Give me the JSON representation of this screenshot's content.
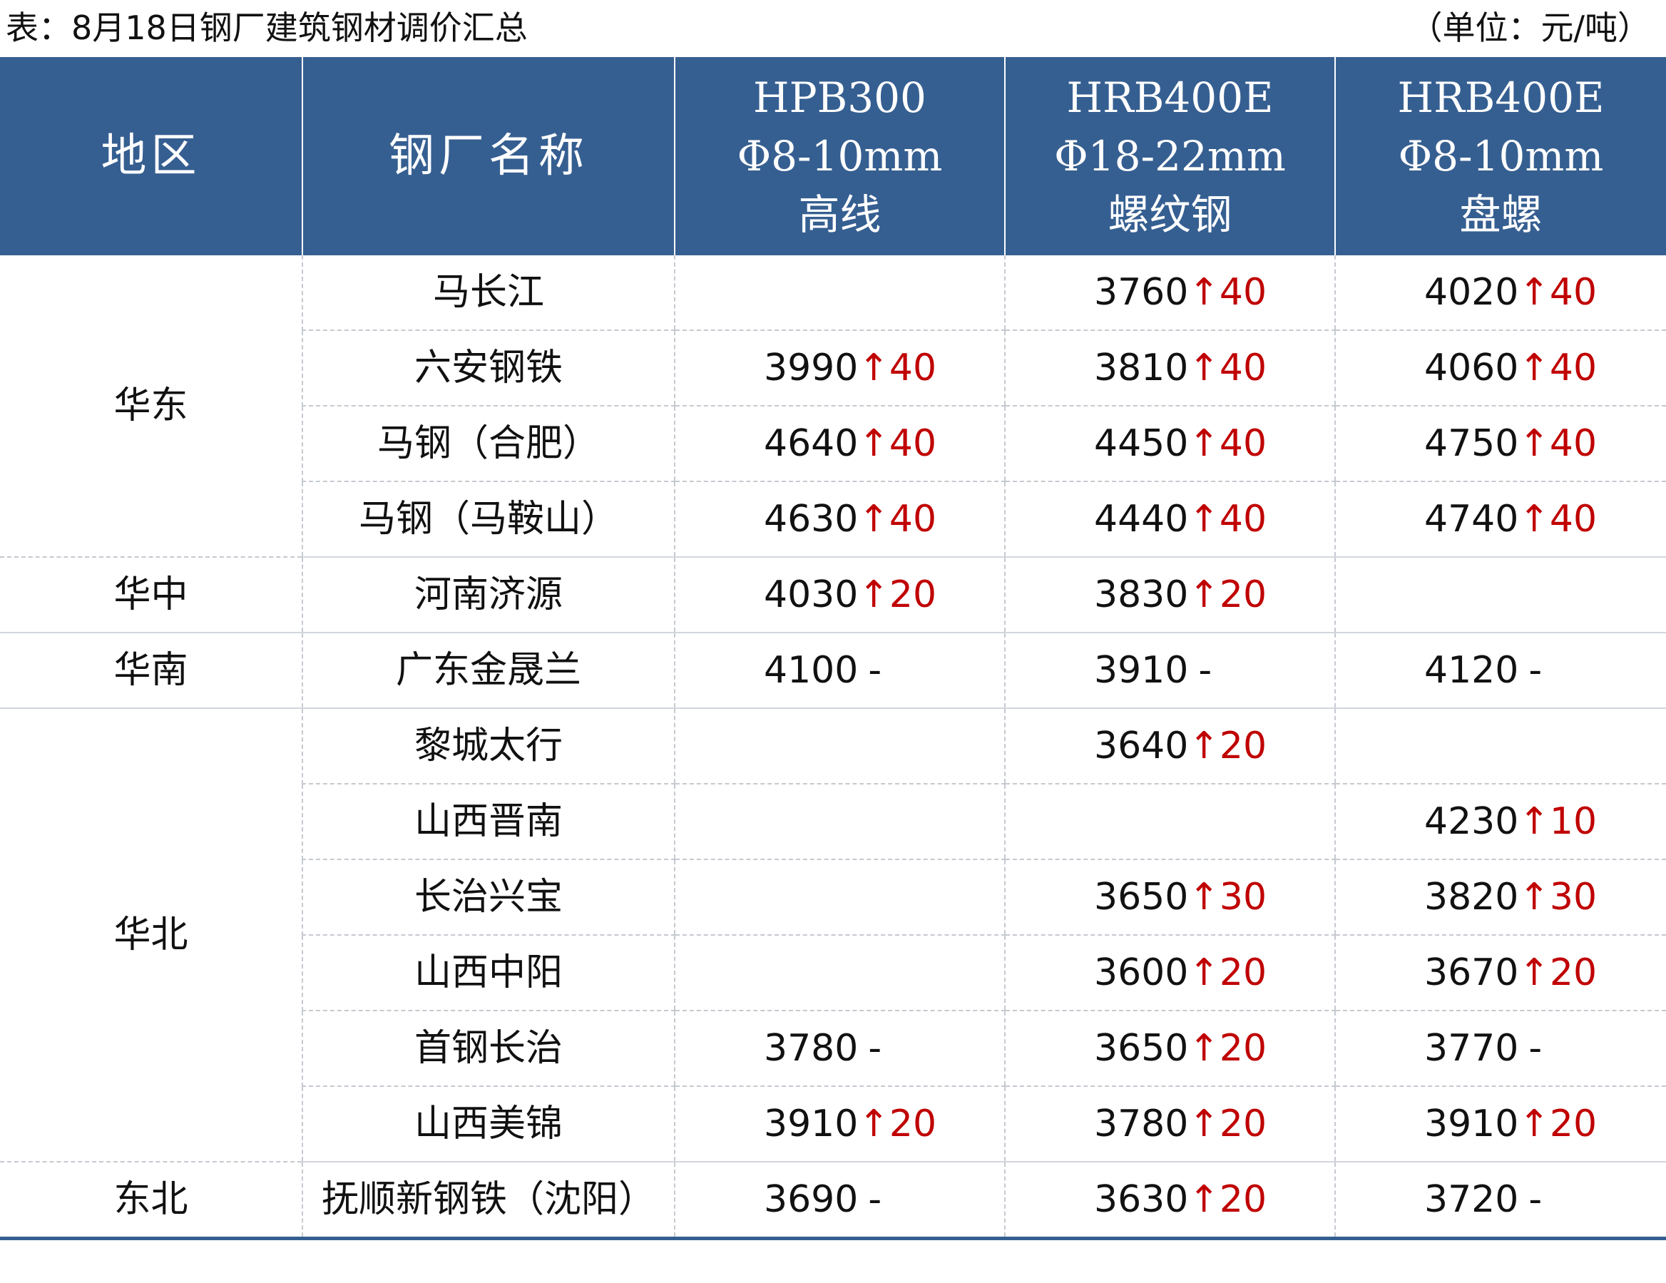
{
  "caption": {
    "title": "表：8月18日钢厂建筑钢材调价汇总",
    "unit": "（单位：元/吨）"
  },
  "headers": {
    "region": "地区",
    "mill": "钢厂名称",
    "col1": [
      "HPB300",
      "Φ8-10mm",
      "高线"
    ],
    "col2": [
      "HRB400E",
      "Φ18-22mm",
      "螺纹钢"
    ],
    "col3": [
      "HRB400E",
      "Φ8-10mm",
      "盘螺"
    ]
  },
  "rows": [
    {
      "region": "华东",
      "rowspan": 4,
      "mill": "马长江",
      "cells": [
        null,
        {
          "price": "3760",
          "change": "↑40"
        },
        {
          "price": "4020",
          "change": "↑40"
        }
      ]
    },
    {
      "mill": "六安钢铁",
      "cells": [
        {
          "price": "3990",
          "change": "↑40"
        },
        {
          "price": "3810",
          "change": "↑40"
        },
        {
          "price": "4060",
          "change": "↑40"
        }
      ]
    },
    {
      "mill": "马钢（合肥）",
      "cells": [
        {
          "price": "4640",
          "change": "↑40"
        },
        {
          "price": "4450",
          "change": "↑40"
        },
        {
          "price": "4750",
          "change": "↑40"
        }
      ]
    },
    {
      "mill": "马钢（马鞍山）",
      "cells": [
        {
          "price": "4630",
          "change": "↑40"
        },
        {
          "price": "4440",
          "change": "↑40"
        },
        {
          "price": "4740",
          "change": "↑40"
        }
      ]
    },
    {
      "region": "华中",
      "rowspan": 1,
      "mill": "河南济源",
      "cells": [
        {
          "price": "4030",
          "change": "↑20"
        },
        {
          "price": "3830",
          "change": "↑20"
        },
        null
      ]
    },
    {
      "region": "华南",
      "rowspan": 1,
      "mill": "广东金晟兰",
      "cells": [
        {
          "price": "4100",
          "change": "-"
        },
        {
          "price": "3910",
          "change": "-"
        },
        {
          "price": "4120",
          "change": "-"
        }
      ]
    },
    {
      "region": "华北",
      "rowspan": 6,
      "mill": "黎城太行",
      "cells": [
        null,
        {
          "price": "3640",
          "change": "↑20"
        },
        null
      ]
    },
    {
      "mill": "山西晋南",
      "cells": [
        null,
        null,
        {
          "price": "4230",
          "change": "↑10"
        }
      ]
    },
    {
      "mill": "长治兴宝",
      "cells": [
        null,
        {
          "price": "3650",
          "change": "↑30"
        },
        {
          "price": "3820",
          "change": "↑30"
        }
      ]
    },
    {
      "mill": "山西中阳",
      "cells": [
        null,
        {
          "price": "3600",
          "change": "↑20"
        },
        {
          "price": "3670",
          "change": "↑20"
        }
      ]
    },
    {
      "mill": "首钢长治",
      "cells": [
        {
          "price": "3780",
          "change": "-"
        },
        {
          "price": "3650",
          "change": "↑20"
        },
        {
          "price": "3770",
          "change": "-"
        }
      ]
    },
    {
      "mill": "山西美锦",
      "cells": [
        {
          "price": "3910",
          "change": "↑20"
        },
        {
          "price": "3780",
          "change": "↑20"
        },
        {
          "price": "3910",
          "change": "↑20"
        }
      ]
    },
    {
      "region": "东北",
      "rowspan": 1,
      "mill": "抚顺新钢铁（沈阳）",
      "cells": [
        {
          "price": "3690",
          "change": "-"
        },
        {
          "price": "3630",
          "change": "↑20"
        },
        {
          "price": "3720",
          "change": "-"
        }
      ]
    }
  ],
  "colors": {
    "header_bg": "#365f91",
    "rise": "#c00000",
    "text": "#111111"
  }
}
